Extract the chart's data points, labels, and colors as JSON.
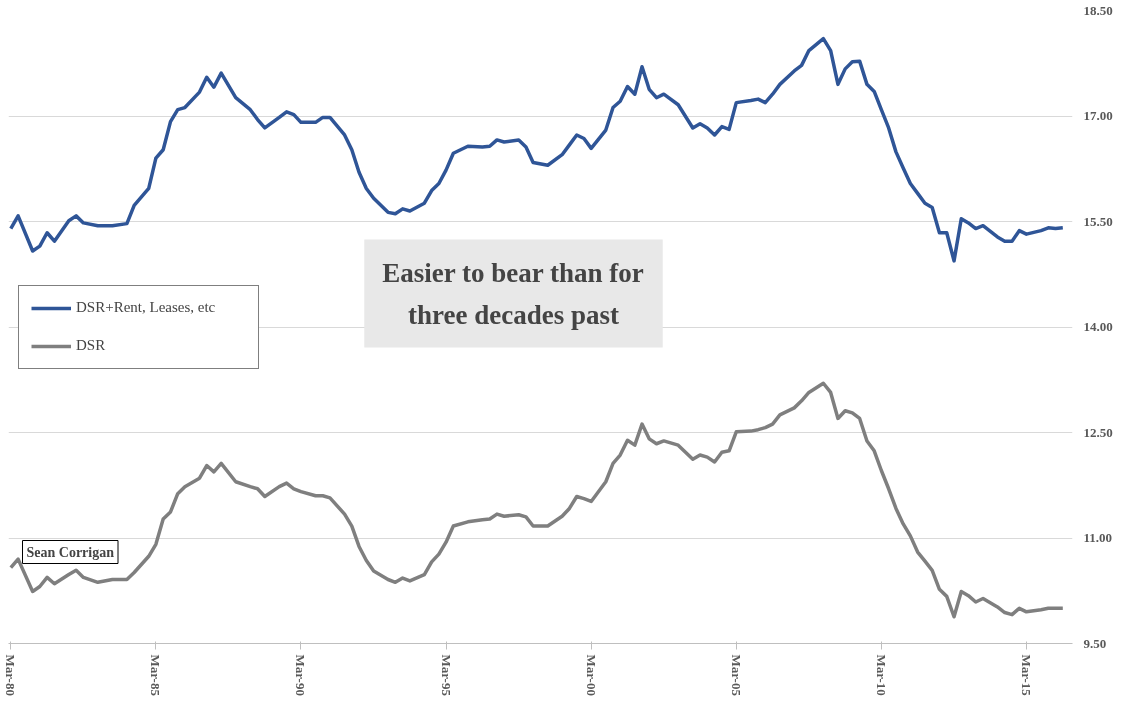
{
  "chart_data": {
    "type": "line",
    "x": [
      "1980-03",
      "1980-06",
      "1980-12",
      "1981-03",
      "1981-06",
      "1981-09",
      "1982-03",
      "1982-06",
      "1982-09",
      "1983-03",
      "1983-09",
      "1984-03",
      "1984-06",
      "1984-12",
      "1985-03",
      "1985-06",
      "1985-09",
      "1985-12",
      "1986-03",
      "1986-09",
      "1986-12",
      "1987-03",
      "1987-06",
      "1987-12",
      "1988-06",
      "1988-09",
      "1988-12",
      "1989-06",
      "1989-09",
      "1989-12",
      "1990-03",
      "1990-09",
      "1990-12",
      "1991-03",
      "1991-09",
      "1991-12",
      "1992-03",
      "1992-06",
      "1992-09",
      "1993-03",
      "1993-06",
      "1993-09",
      "1993-12",
      "1994-06",
      "1994-09",
      "1994-12",
      "1995-03",
      "1995-06",
      "1995-12",
      "1996-06",
      "1996-09",
      "1996-12",
      "1997-03",
      "1997-09",
      "1997-12",
      "1998-03",
      "1998-09",
      "1999-03",
      "1999-06",
      "1999-09",
      "1999-12",
      "2000-03",
      "2000-09",
      "2000-12",
      "2001-03",
      "2001-06",
      "2001-09",
      "2001-12",
      "2002-03",
      "2002-06",
      "2002-09",
      "2003-03",
      "2003-09",
      "2003-12",
      "2004-03",
      "2004-06",
      "2004-09",
      "2004-12",
      "2005-03",
      "2005-09",
      "2005-12",
      "2006-03",
      "2006-06",
      "2006-09",
      "2007-03",
      "2007-06",
      "2007-09",
      "2008-03",
      "2008-06",
      "2008-09",
      "2008-12",
      "2009-03",
      "2009-06",
      "2009-09",
      "2009-12",
      "2010-03",
      "2010-06",
      "2010-09",
      "2010-12",
      "2011-03",
      "2011-06",
      "2011-09",
      "2011-12",
      "2012-03",
      "2012-06",
      "2012-09",
      "2012-12",
      "2013-03",
      "2013-06",
      "2013-09",
      "2014-03",
      "2014-06",
      "2014-09",
      "2014-12",
      "2015-03",
      "2015-09",
      "2015-12",
      "2016-03",
      "2016-06"
    ],
    "series": [
      {
        "name": "DSR+Rent, Leases, etc",
        "color": "#2f5597",
        "values": [
          15.4,
          15.58,
          15.08,
          15.15,
          15.34,
          15.22,
          15.51,
          15.58,
          15.48,
          15.44,
          15.44,
          15.47,
          15.73,
          15.97,
          16.4,
          16.52,
          16.92,
          17.09,
          17.12,
          17.34,
          17.55,
          17.41,
          17.61,
          17.26,
          17.09,
          16.95,
          16.83,
          16.98,
          17.06,
          17.02,
          16.91,
          16.91,
          16.98,
          16.98,
          16.73,
          16.52,
          16.2,
          15.97,
          15.83,
          15.63,
          15.61,
          15.68,
          15.65,
          15.76,
          15.94,
          16.04,
          16.23,
          16.47,
          16.57,
          16.56,
          16.57,
          16.66,
          16.63,
          16.66,
          16.56,
          16.34,
          16.3,
          16.45,
          16.59,
          16.73,
          16.68,
          16.54,
          16.8,
          17.12,
          17.21,
          17.42,
          17.31,
          17.7,
          17.38,
          17.26,
          17.31,
          17.16,
          16.83,
          16.89,
          16.83,
          16.73,
          16.85,
          16.81,
          17.19,
          17.22,
          17.24,
          17.19,
          17.31,
          17.45,
          17.64,
          17.72,
          17.93,
          18.1,
          17.93,
          17.45,
          17.67,
          17.77,
          17.78,
          17.45,
          17.35,
          17.09,
          16.83,
          16.49,
          16.26,
          16.04,
          15.9,
          15.76,
          15.7,
          15.34,
          15.34,
          14.94,
          15.54,
          15.48,
          15.4,
          15.44,
          15.28,
          15.22,
          15.22,
          15.37,
          15.32,
          15.37,
          15.41,
          15.4,
          15.41
        ]
      },
      {
        "name": "DSR",
        "color": "#7f7f7f",
        "values": [
          10.58,
          10.7,
          10.24,
          10.31,
          10.44,
          10.35,
          10.48,
          10.54,
          10.44,
          10.37,
          10.41,
          10.41,
          10.51,
          10.74,
          10.91,
          11.27,
          11.37,
          11.63,
          11.73,
          11.85,
          12.03,
          11.94,
          12.06,
          11.8,
          11.73,
          11.7,
          11.59,
          11.73,
          11.78,
          11.7,
          11.66,
          11.6,
          11.6,
          11.57,
          11.34,
          11.17,
          10.88,
          10.68,
          10.53,
          10.41,
          10.37,
          10.43,
          10.39,
          10.48,
          10.66,
          10.77,
          10.94,
          11.17,
          11.23,
          11.26,
          11.27,
          11.34,
          11.31,
          11.33,
          11.3,
          11.17,
          11.17,
          11.31,
          11.42,
          11.59,
          11.56,
          11.52,
          11.8,
          12.06,
          12.18,
          12.39,
          12.32,
          12.62,
          12.41,
          12.34,
          12.38,
          12.32,
          12.12,
          12.18,
          12.15,
          12.08,
          12.22,
          12.24,
          12.51,
          12.52,
          12.54,
          12.57,
          12.62,
          12.75,
          12.85,
          12.95,
          13.07,
          13.2,
          13.07,
          12.7,
          12.81,
          12.78,
          12.7,
          12.38,
          12.24,
          11.96,
          11.7,
          11.42,
          11.2,
          11.03,
          10.8,
          10.67,
          10.54,
          10.27,
          10.17,
          9.88,
          10.24,
          10.18,
          10.09,
          10.14,
          10.02,
          9.94,
          9.91,
          10.0,
          9.95,
          9.98,
          10.0,
          10.0,
          10.0
        ]
      }
    ],
    "xlim": [
      "1980-02",
      "2016-10"
    ],
    "xticks": [
      {
        "value": "1980-03",
        "label": "Mar-80"
      },
      {
        "value": "1985-03",
        "label": "Mar-85"
      },
      {
        "value": "1990-03",
        "label": "Mar-90"
      },
      {
        "value": "1995-03",
        "label": "Mar-95"
      },
      {
        "value": "2000-03",
        "label": "Mar-00"
      },
      {
        "value": "2005-03",
        "label": "Mar-05"
      },
      {
        "value": "2010-03",
        "label": "Mar-10"
      },
      {
        "value": "2015-03",
        "label": "Mar-15"
      }
    ],
    "ylim": [
      9.5,
      18.5
    ],
    "yticks": [
      {
        "value": 9.5,
        "label": "9.50"
      },
      {
        "value": 11,
        "label": "11.00"
      },
      {
        "value": 12.5,
        "label": "12.50"
      },
      {
        "value": 14,
        "label": "14.00"
      },
      {
        "value": 15.5,
        "label": "15.50"
      },
      {
        "value": 17,
        "label": "17.00"
      },
      {
        "value": 18.5,
        "label": "18.50"
      }
    ],
    "grid": "y",
    "legend": "left",
    "marker": "none",
    "line_style": "solid",
    "annotations": [
      "Easier to bear than for\nthree decades past",
      "Sean Corrigan"
    ]
  }
}
